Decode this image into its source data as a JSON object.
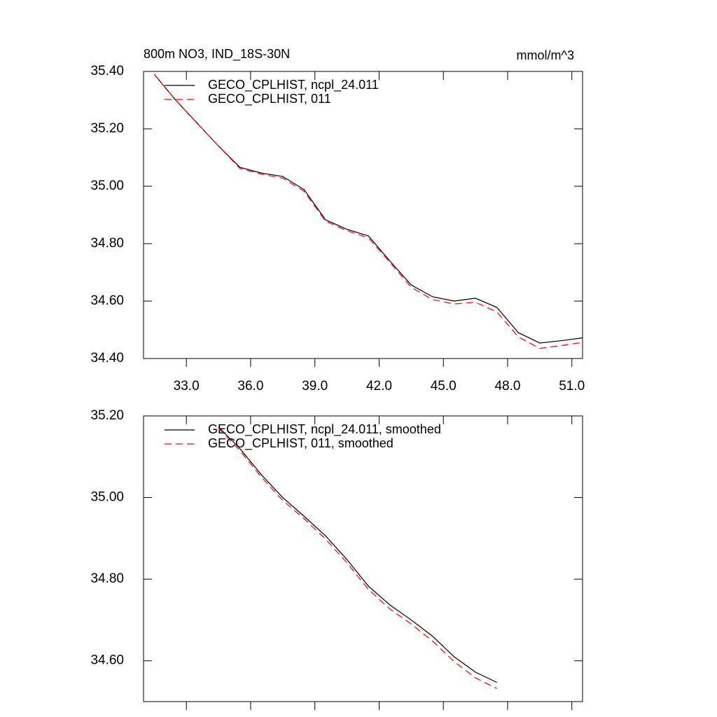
{
  "chart_data": [
    {
      "type": "line",
      "title": "800m NO3, IND_18S-30N",
      "right_title": "mmol/m^3",
      "x": [
        31.5,
        32.5,
        33.5,
        34.5,
        35.5,
        36.5,
        37.5,
        38.5,
        39.5,
        40.5,
        41.5,
        42.5,
        43.5,
        44.5,
        45.5,
        46.5,
        47.5,
        48.5,
        49.5,
        50.5,
        51.5
      ],
      "series": [
        {
          "name": "GECO_CPLHIST, ncpl_24.011",
          "color": "#000000",
          "line_style": "solid",
          "values": [
            35.39,
            35.3,
            35.22,
            35.14,
            35.066,
            35.046,
            35.034,
            34.988,
            34.883,
            34.85,
            34.827,
            34.74,
            34.656,
            34.615,
            34.6,
            34.61,
            34.578,
            34.49,
            34.454,
            34.462,
            34.472
          ]
        },
        {
          "name": "GECO_CPLHIST, 011",
          "color": "#ff0000",
          "line_style": "dashed",
          "values": [
            35.39,
            35.3,
            35.22,
            35.14,
            35.062,
            35.042,
            35.028,
            34.982,
            34.878,
            34.845,
            34.82,
            34.735,
            34.648,
            34.605,
            34.59,
            34.596,
            34.562,
            34.475,
            34.435,
            34.445,
            34.456
          ]
        }
      ],
      "xlim": [
        31,
        51.5
      ],
      "xticks": [
        {
          "value": 33,
          "label": "33.0"
        },
        {
          "value": 36,
          "label": "36.0"
        },
        {
          "value": 39,
          "label": "39.0"
        },
        {
          "value": 42,
          "label": "42.0"
        },
        {
          "value": 45,
          "label": "45.0"
        },
        {
          "value": 48,
          "label": "48.0"
        },
        {
          "value": 51,
          "label": "51.0"
        }
      ],
      "ylim": [
        34.4,
        35.4
      ],
      "yticks": [
        {
          "value": 34.4,
          "label": "34.40"
        },
        {
          "value": 34.6,
          "label": "34.60"
        },
        {
          "value": 34.8,
          "label": "34.80"
        },
        {
          "value": 35.0,
          "label": "35.00"
        },
        {
          "value": 35.2,
          "label": "35.20"
        },
        {
          "value": 35.4,
          "label": "35.40"
        }
      ]
    },
    {
      "type": "line",
      "x": [
        34.5,
        35.5,
        36.5,
        37.5,
        38.5,
        39.5,
        40.5,
        41.5,
        42.5,
        43.5,
        44.5,
        45.5,
        46.5,
        47.5
      ],
      "series": [
        {
          "name": "GECO_CPLHIST, ncpl_24.011, smoothed",
          "color": "#000000",
          "line_style": "solid",
          "values": [
            35.173,
            35.12,
            35.056,
            35.0,
            34.954,
            34.906,
            34.848,
            34.783,
            34.737,
            34.7,
            34.66,
            34.61,
            34.572,
            34.547
          ]
        },
        {
          "name": "GECO_CPLHIST, 011, smoothed",
          "color": "#ff0000",
          "line_style": "dashed",
          "values": [
            35.17,
            35.115,
            35.05,
            34.993,
            34.948,
            34.898,
            34.84,
            34.775,
            34.727,
            34.69,
            34.648,
            34.598,
            34.558,
            34.532
          ]
        }
      ],
      "xlim": [
        31,
        51.5
      ],
      "xticks": [
        33,
        36,
        39,
        42,
        45,
        48,
        51
      ],
      "ylim": [
        34.5,
        35.2
      ],
      "yticks": [
        {
          "value": 34.6,
          "label": "34.60"
        },
        {
          "value": 34.8,
          "label": "34.80"
        },
        {
          "value": 35.0,
          "label": "35.00"
        },
        {
          "value": 35.2,
          "label": "35.20"
        }
      ]
    }
  ]
}
